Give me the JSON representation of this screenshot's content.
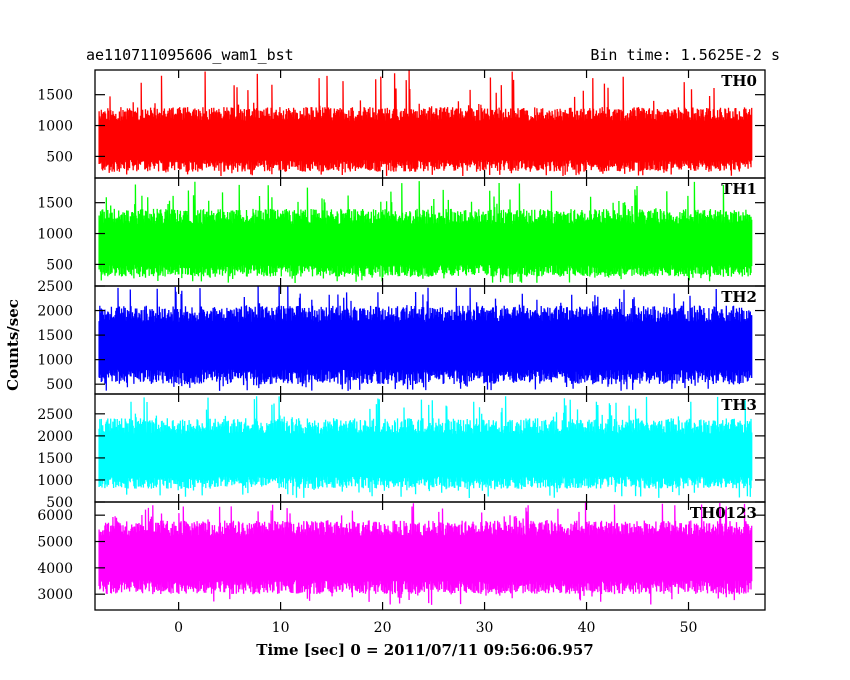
{
  "header": {
    "title": "ae110711095606_wam1_bst",
    "bin_time": "Bin time: 1.5625E-2 s"
  },
  "chart_data": {
    "type": "line",
    "title": "ae110711095606_wam1_bst",
    "xlabel": "Time [sec] 0 = 2011/07/11 09:56:06.957",
    "ylabel": "Counts/sec",
    "xlim": [
      -8.2,
      57.5
    ],
    "x_ticks": [
      0,
      10,
      20,
      30,
      40,
      50
    ],
    "x_range": [
      -7.8,
      56.2
    ],
    "grid": false,
    "panels": [
      {
        "name": "TH0",
        "color": "#ff0000",
        "ylim": [
          150,
          1900
        ],
        "y_ticks": [
          500,
          1000,
          1500
        ],
        "typical_min": 250,
        "typical_max": 1300,
        "peak": 1900,
        "mean": 800
      },
      {
        "name": "TH1",
        "color": "#00ff00",
        "ylim": [
          150,
          1900
        ],
        "y_ticks": [
          500,
          1000,
          1500
        ],
        "typical_min": 300,
        "typical_max": 1400,
        "peak": 1850,
        "mean": 850
      },
      {
        "name": "TH2",
        "color": "#0000ff",
        "ylim": [
          300,
          2500
        ],
        "y_ticks": [
          500,
          1000,
          1500,
          2000,
          2500
        ],
        "typical_min": 500,
        "typical_max": 2100,
        "peak": 2500,
        "mean": 1350
      },
      {
        "name": "TH3",
        "color": "#00ffff",
        "ylim": [
          500,
          2950
        ],
        "y_ticks": [
          500,
          1000,
          1500,
          2000,
          2500
        ],
        "typical_min": 800,
        "typical_max": 2400,
        "peak": 2900,
        "mean": 1600
      },
      {
        "name": "TH0123",
        "color": "#ff00ff",
        "ylim": [
          2400,
          6500
        ],
        "y_ticks": [
          3000,
          4000,
          5000,
          6000
        ],
        "typical_min": 3000,
        "typical_max": 5800,
        "peak": 6500,
        "mean": 4500
      }
    ]
  }
}
